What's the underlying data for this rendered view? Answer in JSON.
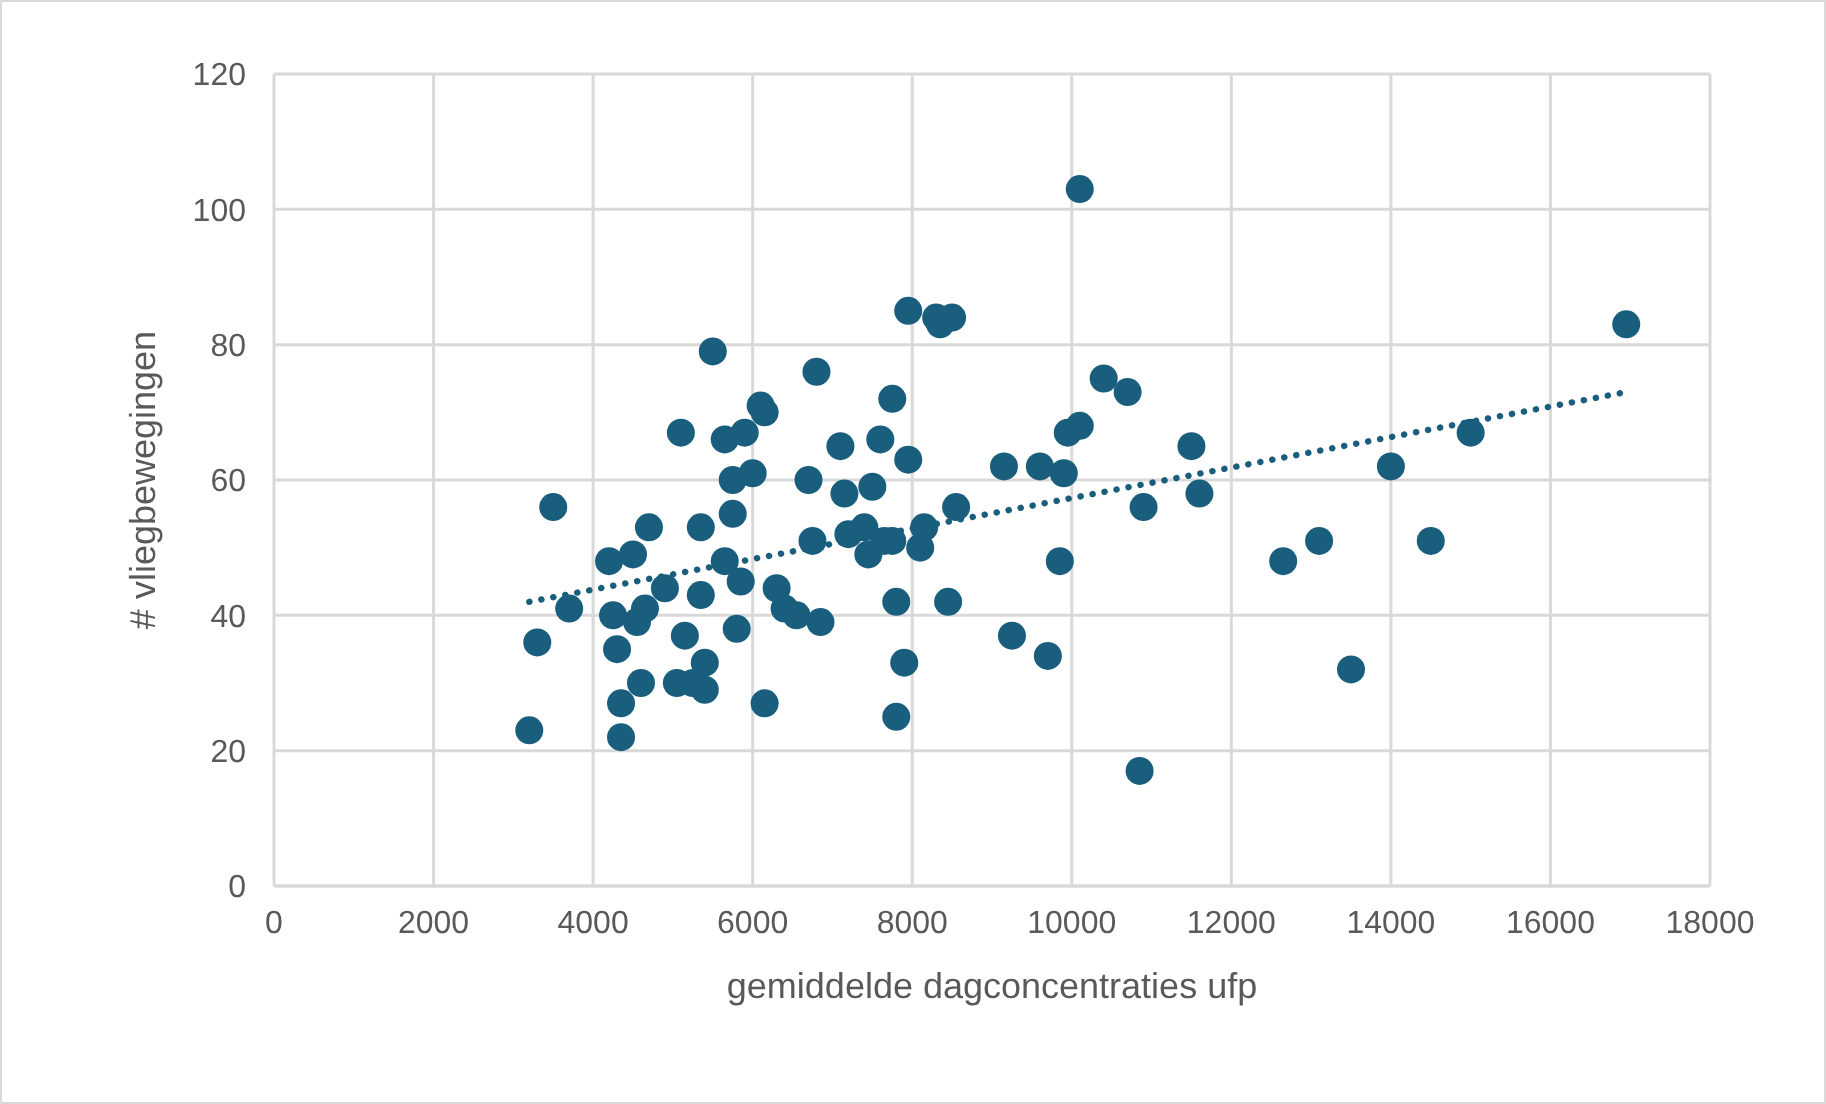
{
  "chart_data": {
    "type": "scatter",
    "xlabel": "gemiddelde dagconcentraties ufp",
    "ylabel": "# vliegbewegingen",
    "xlim": [
      0,
      18000
    ],
    "xticks": [
      0,
      2000,
      4000,
      6000,
      8000,
      10000,
      12000,
      14000,
      16000,
      18000
    ],
    "ylim": [
      0,
      120
    ],
    "yticks": [
      0,
      20,
      40,
      60,
      80,
      100,
      120
    ],
    "grid": true,
    "marker": "circle",
    "series": [
      {
        "type": "scatter",
        "color": "#1a5e7e",
        "x": [
          3200,
          3300,
          3500,
          3700,
          4200,
          4250,
          4300,
          4350,
          4350,
          4500,
          4550,
          4600,
          4650,
          4700,
          4900,
          5050,
          5100,
          5150,
          5250,
          5350,
          5350,
          5400,
          5400,
          5500,
          5650,
          5650,
          5750,
          5750,
          5800,
          5850,
          5900,
          6000,
          6100,
          6150,
          6150,
          6300,
          6400,
          6550,
          6700,
          6750,
          6800,
          6850,
          7100,
          7150,
          7200,
          7400,
          7450,
          7500,
          7600,
          7650,
          7750,
          7750,
          7800,
          7800,
          7900,
          7950,
          7950,
          8100,
          8150,
          8300,
          8350,
          8450,
          8500,
          8550,
          9150,
          9250,
          9600,
          9700,
          9850,
          9900,
          9950,
          10100,
          10100,
          10400,
          10700,
          10850,
          10900,
          11500,
          11600,
          12650,
          13100,
          13500,
          14000,
          14500,
          15000,
          16950
        ],
        "values": [
          23,
          36,
          56,
          41,
          48,
          40,
          35,
          27,
          22,
          49,
          39,
          30,
          41,
          53,
          44,
          30,
          67,
          37,
          30,
          53,
          43,
          29,
          33,
          79,
          66,
          48,
          55,
          60,
          38,
          45,
          67,
          61,
          71,
          70,
          27,
          44,
          41,
          40,
          60,
          51,
          76,
          39,
          65,
          58,
          52,
          53,
          49,
          59,
          66,
          51,
          51,
          72,
          42,
          25,
          33,
          85,
          63,
          50,
          53,
          84,
          83,
          42,
          84,
          56,
          62,
          37,
          62,
          34,
          48,
          61,
          67,
          68,
          103,
          75,
          73,
          17,
          56,
          65,
          58,
          48,
          51,
          32,
          62,
          51,
          67,
          83
        ]
      },
      {
        "type": "line",
        "color": "#1a5e7e",
        "line_style": "dotted",
        "marker": "none",
        "x": [
          3200,
          16950
        ],
        "values": [
          42,
          73
        ]
      }
    ]
  }
}
